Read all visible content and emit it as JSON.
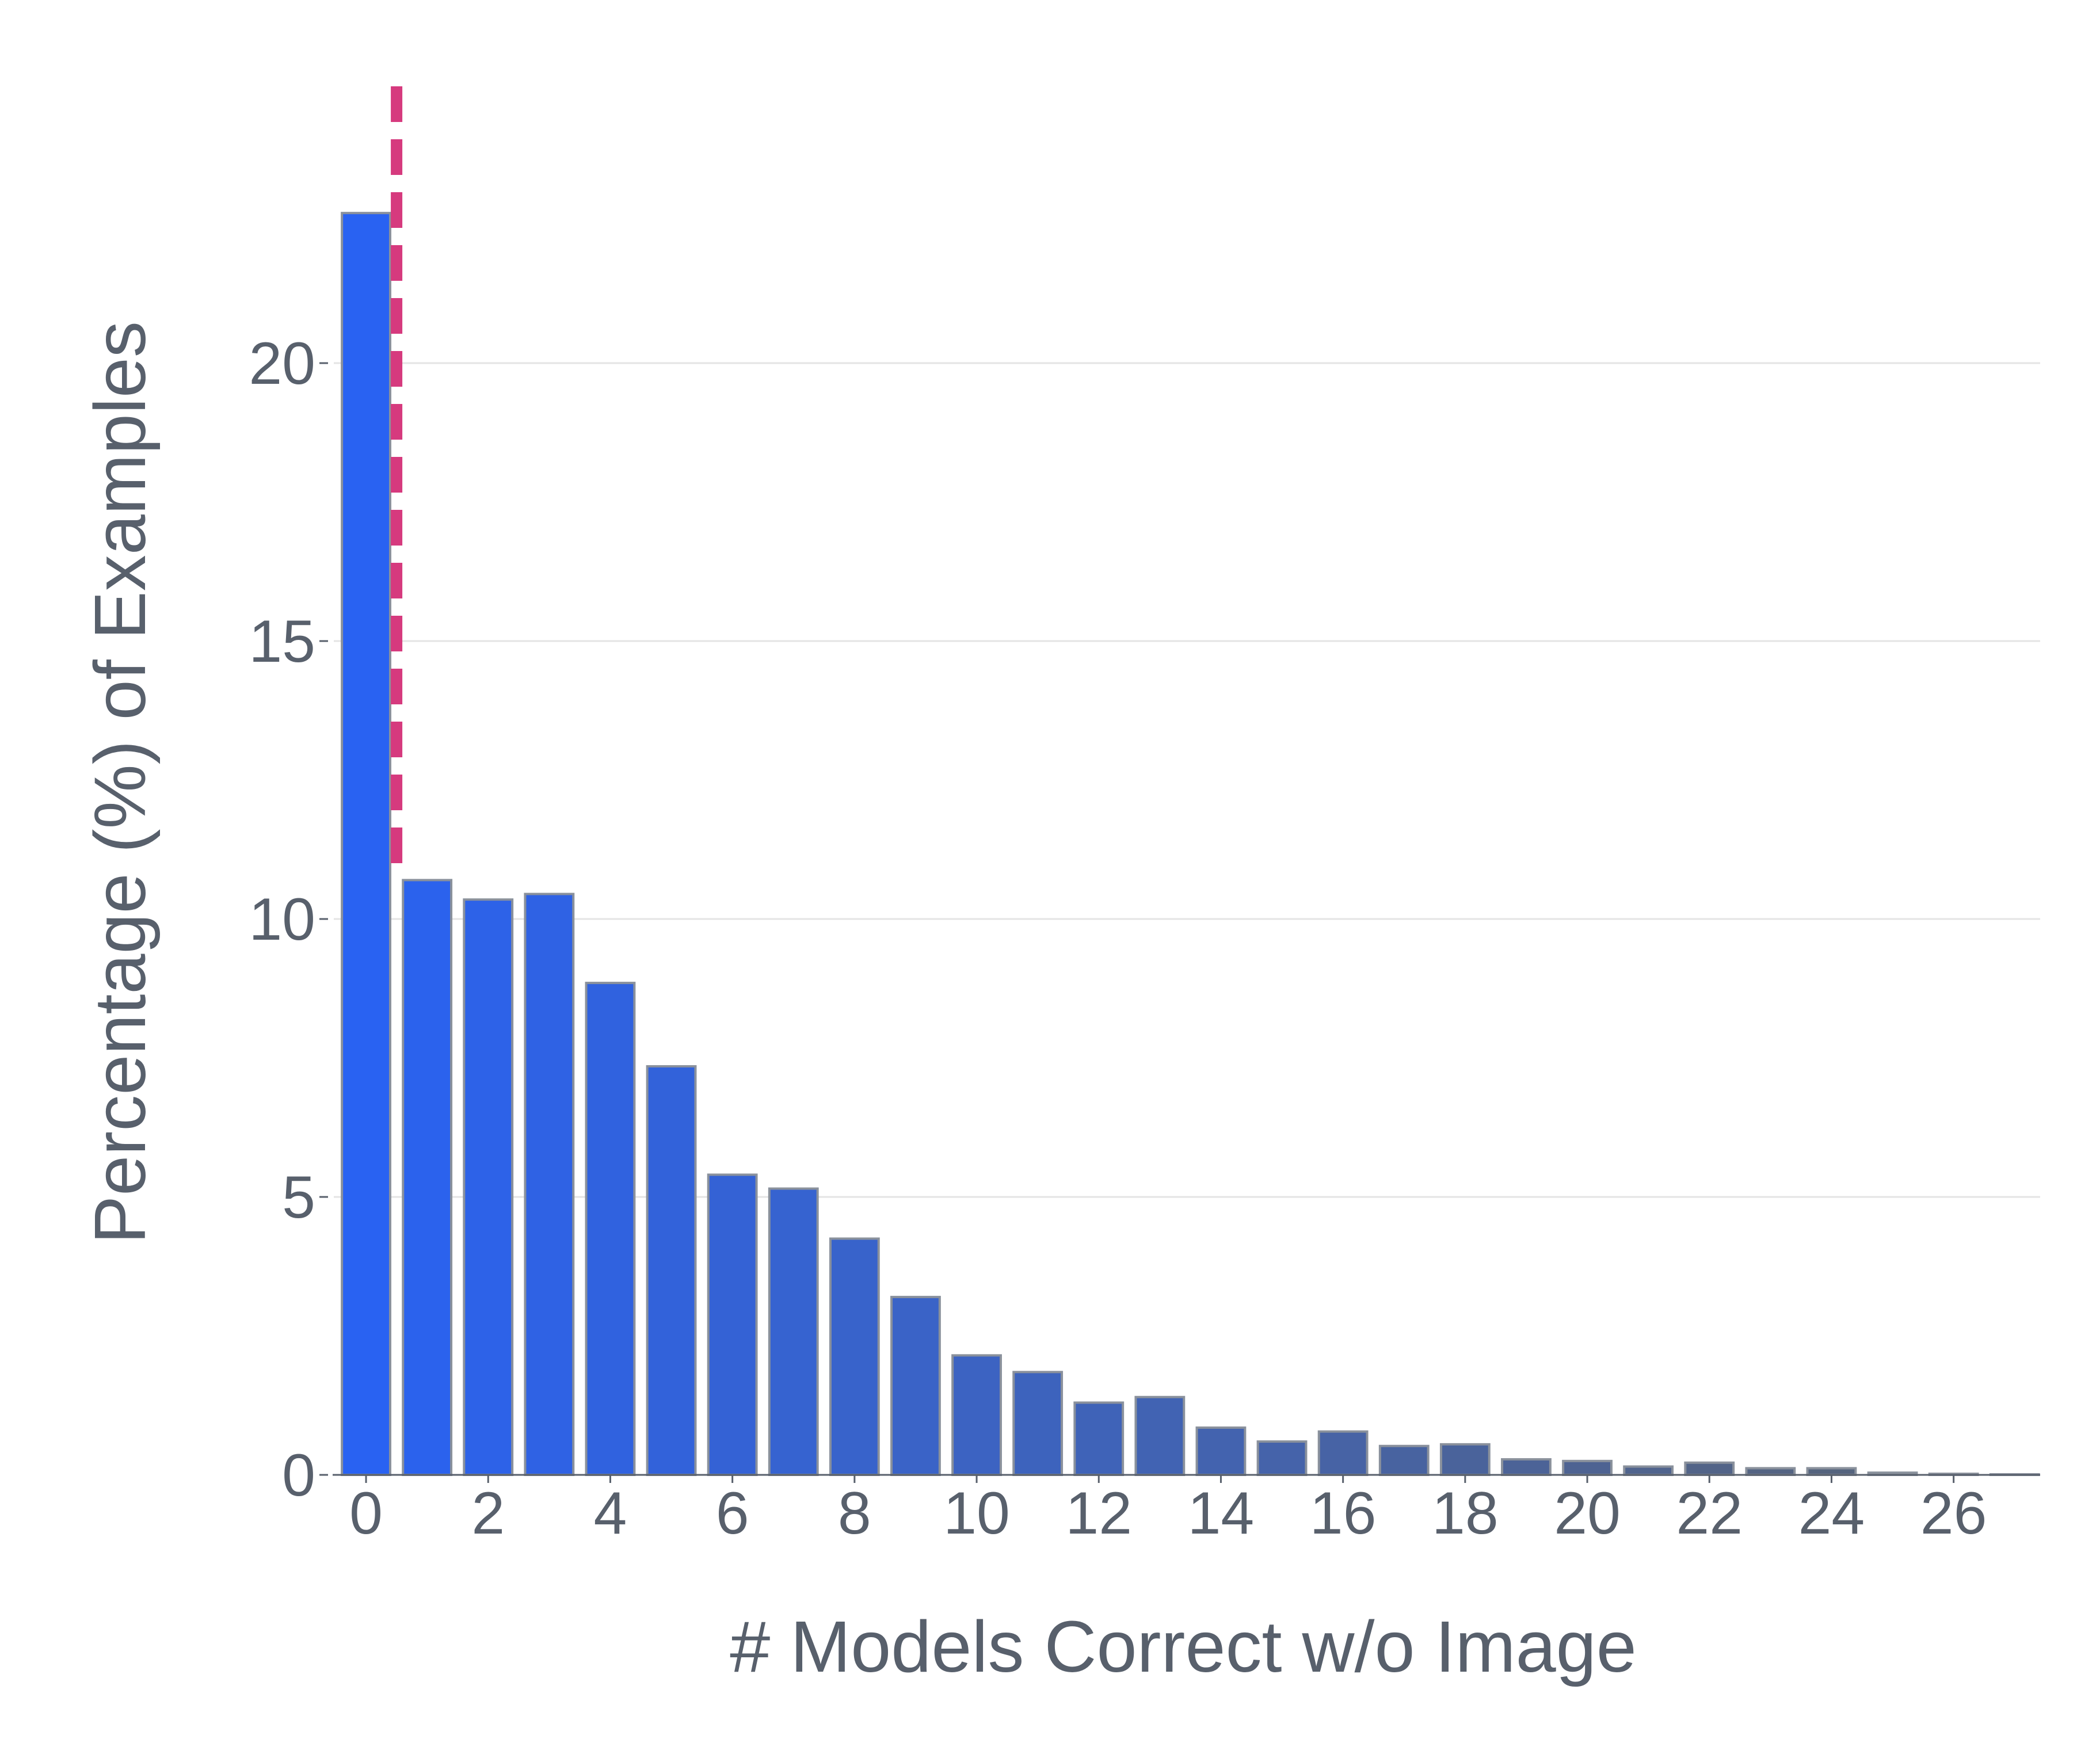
{
  "chart_data": {
    "type": "bar",
    "xlabel": "# Models Correct w/o Image",
    "ylabel": "Percentage (%) of Examples",
    "x": [
      0,
      1,
      2,
      3,
      4,
      5,
      6,
      7,
      8,
      9,
      10,
      11,
      12,
      13,
      14,
      15,
      16,
      17,
      18,
      19,
      20,
      21,
      22,
      23,
      24,
      25,
      26,
      27
    ],
    "values": [
      22.7,
      10.7,
      10.35,
      10.45,
      8.85,
      7.35,
      5.4,
      5.15,
      4.25,
      3.2,
      2.15,
      1.85,
      1.3,
      1.4,
      0.85,
      0.6,
      0.78,
      0.52,
      0.55,
      0.28,
      0.25,
      0.15,
      0.22,
      0.12,
      0.12,
      0.04,
      0.02,
      0.01
    ],
    "x_ticks": [
      "0",
      "2",
      "4",
      "6",
      "8",
      "10",
      "12",
      "14",
      "16",
      "18",
      "20",
      "22",
      "24",
      "26"
    ],
    "y_ticks": [
      "0",
      "5",
      "10",
      "15",
      "20"
    ],
    "ylim": [
      0,
      25
    ],
    "reference_line": {
      "x": 1,
      "style": "dashed",
      "color": "#d63a7e"
    },
    "grid": "horizontal",
    "colors": {
      "bar_gradient_start": "#2962f2",
      "bar_gradient_end": "#5b6470",
      "bar_edge": "#8a919c",
      "text": "#58606c",
      "grid": "#e4e4e4"
    }
  }
}
